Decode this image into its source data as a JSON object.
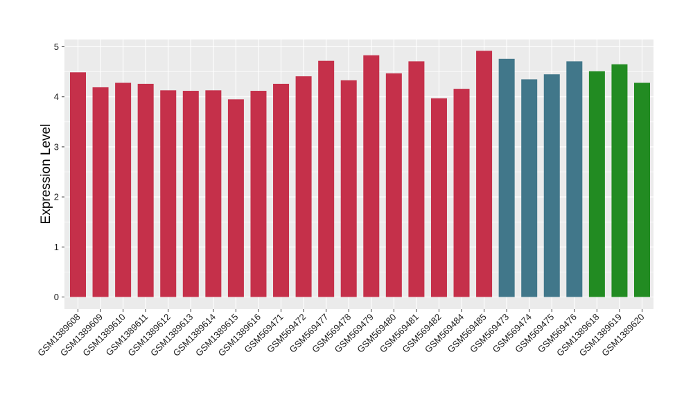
{
  "chart_data": {
    "type": "bar",
    "title": "",
    "xlabel": "",
    "ylabel": "Expression Level",
    "ylim": [
      0,
      5
    ],
    "yticks": [
      0,
      1,
      2,
      3,
      4,
      5
    ],
    "grid": true,
    "colors": {
      "red": "#c5304a",
      "blue": "#41778a",
      "green": "#228b22",
      "panel": "#ebebeb",
      "grid": "#ffffff"
    },
    "categories": [
      "GSM1389608",
      "GSM1389609",
      "GSM1389610",
      "GSM1389611",
      "GSM1389612",
      "GSM1389613",
      "GSM1389614",
      "GSM1389615",
      "GSM1389616",
      "GSM569471",
      "GSM569472",
      "GSM569477",
      "GSM569478",
      "GSM569479",
      "GSM569480",
      "GSM569481",
      "GSM569482",
      "GSM569484",
      "GSM569485",
      "GSM569473",
      "GSM569474",
      "GSM569475",
      "GSM569476",
      "GSM1389618",
      "GSM1389619",
      "GSM1389620"
    ],
    "values": [
      4.49,
      4.19,
      4.28,
      4.26,
      4.13,
      4.12,
      4.13,
      3.95,
      4.12,
      4.26,
      4.41,
      4.72,
      4.33,
      4.83,
      4.47,
      4.71,
      3.97,
      4.16,
      4.92,
      4.76,
      4.35,
      4.45,
      4.71,
      4.51,
      4.65,
      4.28
    ],
    "bar_colors": [
      "red",
      "red",
      "red",
      "red",
      "red",
      "red",
      "red",
      "red",
      "red",
      "red",
      "red",
      "red",
      "red",
      "red",
      "red",
      "red",
      "red",
      "red",
      "red",
      "blue",
      "blue",
      "blue",
      "blue",
      "green",
      "green",
      "green"
    ]
  }
}
